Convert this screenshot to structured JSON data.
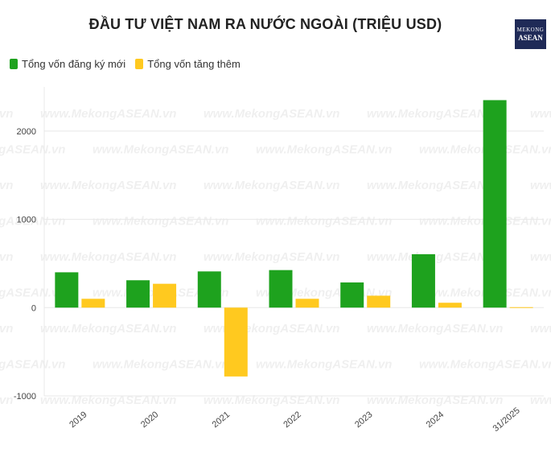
{
  "header": {
    "title": "ĐẦU TƯ VIỆT NAM RA NƯỚC NGOÀI (TRIỆU USD)",
    "logo_line1": "MEKONG",
    "logo_line2": "ASEAN"
  },
  "watermark": "www.MekongASEAN.vn",
  "colors": {
    "new": "#1ea21e",
    "added": "#ffc91f",
    "grid": "#e8e8e8"
  },
  "chart_data": {
    "type": "bar",
    "title": "ĐẦU TƯ VIỆT NAM RA NƯỚC NGOÀI (TRIỆU USD)",
    "categories": [
      "2019",
      "2020",
      "2021",
      "2022",
      "2023",
      "2024",
      "31/2025"
    ],
    "series": [
      {
        "name": "Tổng vốn đăng ký mới",
        "values": [
          400,
          310,
          410,
          425,
          285,
          605,
          2350
        ]
      },
      {
        "name": "Tổng vốn tăng thêm",
        "values": [
          100,
          270,
          -780,
          100,
          135,
          55,
          5
        ]
      }
    ],
    "yticks": [
      -1000,
      0,
      1000,
      2000
    ],
    "ylim": [
      -1000,
      2500
    ],
    "legend_position": "top-left",
    "grid": true
  }
}
